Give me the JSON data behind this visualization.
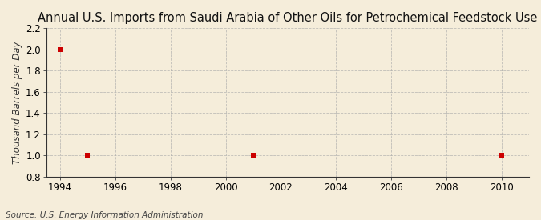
{
  "title": "Annual U.S. Imports from Saudi Arabia of Other Oils for Petrochemical Feedstock Use",
  "ylabel": "Thousand Barrels per Day",
  "source": "Source: U.S. Energy Information Administration",
  "xlim": [
    1993.5,
    2011.0
  ],
  "ylim": [
    0.8,
    2.2
  ],
  "xticks": [
    1994,
    1996,
    1998,
    2000,
    2002,
    2004,
    2006,
    2008,
    2010
  ],
  "yticks": [
    0.8,
    1.0,
    1.2,
    1.4,
    1.6,
    1.8,
    2.0,
    2.2
  ],
  "data_x": [
    1994,
    1995,
    2001,
    2010
  ],
  "data_y": [
    2.0,
    1.0,
    1.0,
    1.0
  ],
  "marker_color": "#cc0000",
  "marker_size": 4,
  "bg_color": "#f5edda",
  "grid_color": "#aaaaaa",
  "title_fontsize": 10.5,
  "label_fontsize": 8.5,
  "tick_fontsize": 8.5,
  "source_fontsize": 7.5
}
